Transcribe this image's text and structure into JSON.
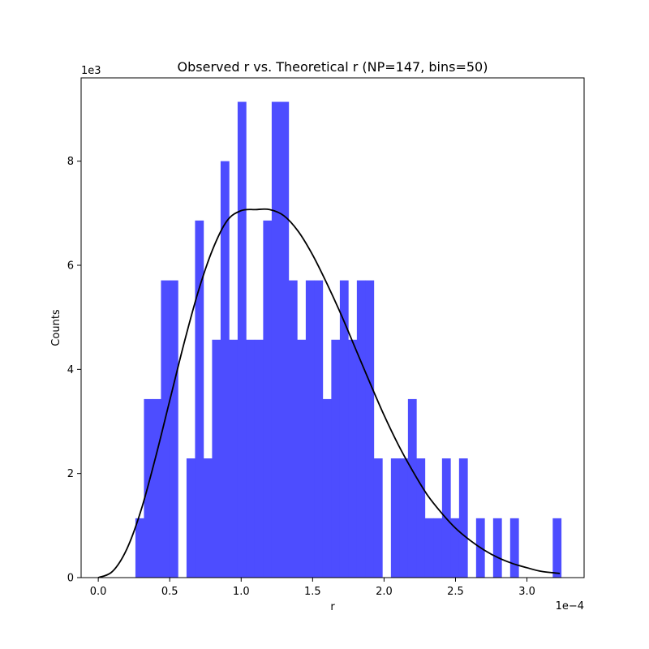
{
  "chart_data": {
    "type": "bar",
    "title": "Observed r vs. Theoretical r (NP=147, bins=50)",
    "xlabel": "r",
    "ylabel": "Counts",
    "x_multiplier_label": "1e−4",
    "y_multiplier_label": "1e3",
    "x_scale_exp": -4,
    "y_scale_exp": 3,
    "xlim": [
      -0.12,
      3.4
    ],
    "ylim": [
      0,
      9.6
    ],
    "xticks": [
      0.0,
      0.5,
      1.0,
      1.5,
      2.0,
      2.5,
      3.0
    ],
    "xtick_labels": [
      "0.0",
      "0.5",
      "1.0",
      "1.5",
      "2.0",
      "2.5",
      "3.0"
    ],
    "yticks": [
      0,
      2,
      4,
      6,
      8
    ],
    "ytick_labels": [
      "0",
      "2",
      "4",
      "6",
      "8"
    ],
    "grid": false,
    "bar_color": "#4d4dff",
    "curve_color": "#000000",
    "histogram": {
      "name": "Observed r",
      "bin_start": 0.26,
      "bin_width": 0.0596,
      "counts": [
        1.14,
        3.43,
        3.43,
        5.71,
        5.71,
        0,
        2.29,
        6.86,
        2.29,
        4.57,
        8.0,
        4.57,
        9.14,
        4.57,
        4.57,
        6.86,
        9.14,
        9.14,
        5.71,
        4.57,
        5.71,
        5.71,
        3.43,
        4.57,
        5.71,
        4.57,
        5.71,
        5.71,
        2.29,
        0,
        2.29,
        2.29,
        3.43,
        2.29,
        1.14,
        1.14,
        2.29,
        1.14,
        2.29,
        0,
        1.14,
        0,
        1.14,
        0,
        1.14,
        0,
        0,
        0,
        0,
        1.14
      ]
    },
    "curve": {
      "name": "Theoretical r",
      "x": [
        0.0,
        0.1,
        0.2,
        0.3,
        0.4,
        0.5,
        0.6,
        0.7,
        0.8,
        0.9,
        1.0,
        1.1,
        1.2,
        1.3,
        1.4,
        1.5,
        1.6,
        1.7,
        1.8,
        1.9,
        2.0,
        2.1,
        2.2,
        2.3,
        2.4,
        2.5,
        2.6,
        2.7,
        2.8,
        2.9,
        3.0,
        3.1,
        3.23
      ],
      "y": [
        0.0,
        0.12,
        0.55,
        1.3,
        2.3,
        3.4,
        4.5,
        5.5,
        6.3,
        6.85,
        7.05,
        7.07,
        7.07,
        6.95,
        6.65,
        6.2,
        5.65,
        5.05,
        4.4,
        3.75,
        3.12,
        2.55,
        2.05,
        1.6,
        1.25,
        0.95,
        0.72,
        0.53,
        0.38,
        0.27,
        0.19,
        0.12,
        0.08
      ]
    }
  }
}
